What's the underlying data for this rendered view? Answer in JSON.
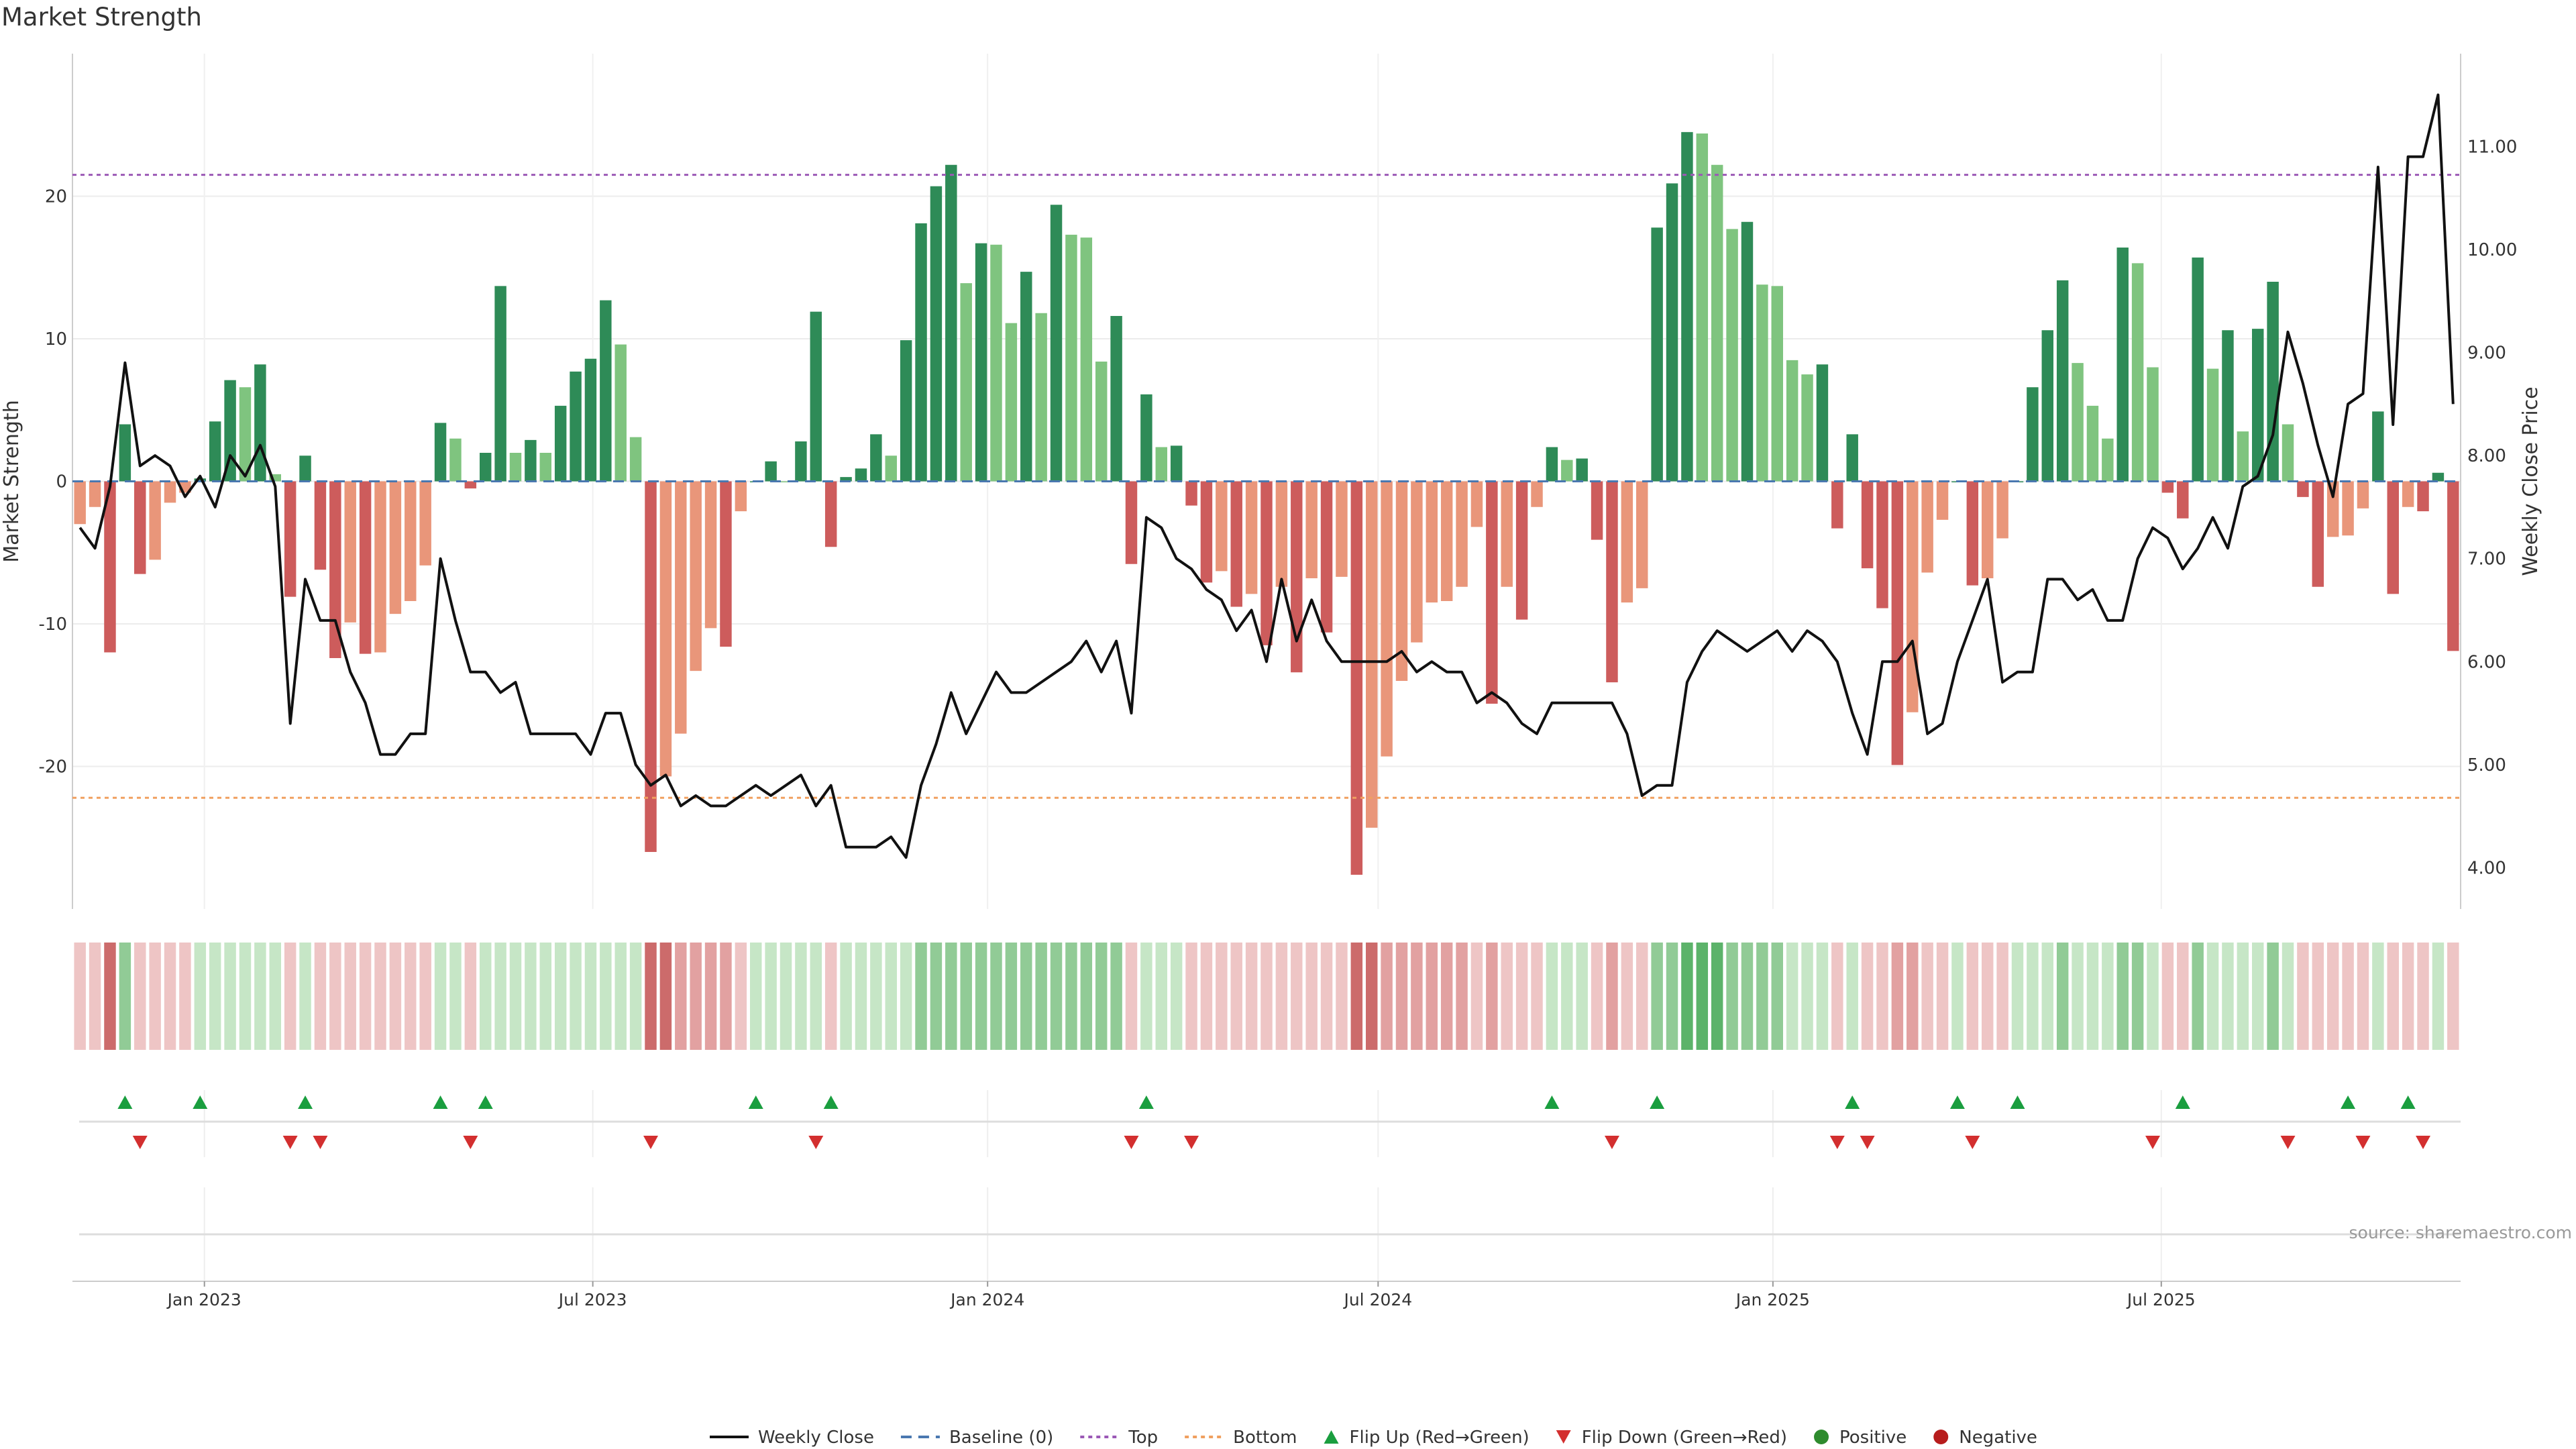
{
  "title": "Market Strength",
  "source": "source: sharemaestro.com",
  "colors": {
    "strong_green": "#2e8b57",
    "light_green": "#7fc47f",
    "strong_red": "#cd5c5c",
    "light_red": "#e9967a",
    "line": "#111111",
    "baseline": "#4a78b0",
    "top_line": "#9b59b6",
    "bottom_line": "#f0a060",
    "flip_up": "#1a9e3f",
    "flip_down": "#d32f2f",
    "positive": "#2e8b2e",
    "negative": "#b71c1c"
  },
  "chart_data": {
    "type": "bar",
    "title": "Market Strength",
    "ylabel": "Market Strength",
    "y2label": "Weekly Close Price",
    "ylim": [
      -30,
      30
    ],
    "y2lim": [
      3.6,
      11.9
    ],
    "yticks": [
      -20,
      -10,
      0,
      10,
      20
    ],
    "y2ticks": [
      "4.00",
      "5.00",
      "6.00",
      "7.00",
      "8.00",
      "9.00",
      "10.00",
      "11.00"
    ],
    "x_start": "2022-11-04",
    "x_step_days": 7,
    "xticks": [
      {
        "date": "2023-01-01",
        "label": "Jan 2023"
      },
      {
        "date": "2023-07-01",
        "label": "Jul 2023"
      },
      {
        "date": "2024-01-01",
        "label": "Jan 2024"
      },
      {
        "date": "2024-07-01",
        "label": "Jul 2024"
      },
      {
        "date": "2025-01-01",
        "label": "Jan 2025"
      },
      {
        "date": "2025-07-01",
        "label": "Jul 2025"
      }
    ],
    "top_level": 21.5,
    "bottom_level": -22.2,
    "baseline_level": 0,
    "strength": [
      -3.0,
      -1.8,
      -12.0,
      4.0,
      -6.5,
      -5.5,
      -1.5,
      -0.8,
      0.2,
      4.2,
      7.1,
      6.6,
      8.2,
      0.5,
      -8.1,
      1.8,
      -6.2,
      -12.4,
      -9.9,
      -12.1,
      -12.0,
      -9.3,
      -8.4,
      -5.9,
      4.1,
      3.0,
      -0.5,
      2.0,
      13.7,
      2.0,
      2.9,
      2.0,
      5.3,
      7.7,
      8.6,
      12.7,
      9.6,
      3.1,
      -26.0,
      -20.7,
      -17.7,
      -13.3,
      -10.3,
      -11.6,
      -2.1,
      0.0,
      1.4,
      0.0,
      2.8,
      11.9,
      -4.6,
      0.3,
      0.9,
      3.3,
      1.8,
      9.9,
      18.1,
      20.7,
      22.2,
      13.9,
      16.7,
      16.6,
      11.1,
      14.7,
      11.8,
      19.4,
      17.3,
      17.1,
      8.4,
      11.6,
      -5.8,
      6.1,
      2.4,
      2.5,
      -1.7,
      -7.1,
      -6.3,
      -8.8,
      -7.9,
      -11.5,
      -7.4,
      -13.4,
      -6.8,
      -10.6,
      -6.7,
      -27.6,
      -24.3,
      -19.3,
      -14.0,
      -11.3,
      -8.5,
      -8.4,
      -7.4,
      -3.2,
      -15.6,
      -7.4,
      -9.7,
      -1.8,
      2.4,
      1.5,
      1.6,
      -4.1,
      -14.1,
      -8.5,
      -7.5,
      17.8,
      20.9,
      24.5,
      24.4,
      22.2,
      17.7,
      18.2,
      13.8,
      13.7,
      8.5,
      7.5,
      8.2,
      -3.3,
      3.3,
      -6.1,
      -8.9,
      -19.9,
      -16.2,
      -6.4,
      -2.7,
      0.0,
      -7.3,
      -6.8,
      -4.0,
      0.0,
      6.6,
      10.6,
      14.1,
      8.3,
      5.3,
      3.0,
      16.4,
      15.3,
      8.0,
      -0.8,
      -2.6,
      15.7,
      7.9,
      10.6,
      3.5,
      10.7,
      14.0,
      4.0,
      -1.1,
      -7.4,
      -3.9,
      -3.8,
      -1.9,
      4.9,
      -7.9,
      -1.8,
      -2.1,
      0.6,
      -11.9
    ],
    "close": [
      7.3,
      7.1,
      7.7,
      8.9,
      7.9,
      8.0,
      7.9,
      7.6,
      7.8,
      7.5,
      8.0,
      7.8,
      8.1,
      7.7,
      5.4,
      6.8,
      6.4,
      6.4,
      5.9,
      5.6,
      5.1,
      5.1,
      5.3,
      5.3,
      7.0,
      6.4,
      5.9,
      5.9,
      5.7,
      5.8,
      5.3,
      5.3,
      5.3,
      5.3,
      5.1,
      5.5,
      5.5,
      5.0,
      4.8,
      4.9,
      4.6,
      4.7,
      4.6,
      4.6,
      4.7,
      4.8,
      4.7,
      4.8,
      4.9,
      4.6,
      4.8,
      4.2,
      4.2,
      4.2,
      4.3,
      4.1,
      4.8,
      5.2,
      5.7,
      5.3,
      5.6,
      5.9,
      5.7,
      5.7,
      5.8,
      5.9,
      6.0,
      6.2,
      5.9,
      6.2,
      5.5,
      7.4,
      7.3,
      7.0,
      6.9,
      6.7,
      6.6,
      6.3,
      6.5,
      6.0,
      6.8,
      6.2,
      6.6,
      6.2,
      6.0,
      6.0,
      6.0,
      6.0,
      6.1,
      5.9,
      6.0,
      5.9,
      5.9,
      5.6,
      5.7,
      5.6,
      5.4,
      5.3,
      5.6,
      5.6,
      5.6,
      5.6,
      5.6,
      5.3,
      4.7,
      4.8,
      4.8,
      5.8,
      6.1,
      6.3,
      6.2,
      6.1,
      6.2,
      6.3,
      6.1,
      6.3,
      6.2,
      6.0,
      5.5,
      5.1,
      6.0,
      6.0,
      6.2,
      5.3,
      5.4,
      6.0,
      6.4,
      6.8,
      5.8,
      5.9,
      5.9,
      6.8,
      6.8,
      6.6,
      6.7,
      6.4,
      6.4,
      7.0,
      7.3,
      7.2,
      6.9,
      7.1,
      7.4,
      7.1,
      7.7,
      7.8,
      8.2,
      9.2,
      8.7,
      8.1,
      7.6,
      8.5,
      8.6,
      10.8,
      8.3,
      10.9,
      10.9,
      11.5,
      8.5
    ],
    "heat_shade": [
      1,
      1,
      3,
      2,
      1,
      1,
      1,
      1,
      1,
      1,
      1,
      1,
      1,
      1,
      1,
      1,
      1,
      1,
      1,
      1,
      1,
      1,
      1,
      1,
      1,
      1,
      1,
      1,
      1,
      1,
      1,
      1,
      1,
      1,
      1,
      1,
      1,
      1,
      3,
      3,
      2,
      2,
      2,
      2,
      1,
      1,
      1,
      1,
      1,
      1,
      1,
      1,
      1,
      1,
      1,
      1,
      2,
      2,
      2,
      2,
      2,
      2,
      2,
      2,
      2,
      2,
      2,
      2,
      2,
      2,
      1,
      1,
      1,
      1,
      1,
      1,
      1,
      1,
      1,
      1,
      1,
      1,
      1,
      1,
      1,
      3,
      3,
      2,
      2,
      2,
      2,
      2,
      2,
      1,
      2,
      1,
      1,
      1,
      1,
      1,
      1,
      1,
      2,
      1,
      1,
      2,
      2,
      3,
      3,
      3,
      2,
      2,
      2,
      2,
      1,
      1,
      1,
      1,
      1,
      1,
      1,
      2,
      2,
      1,
      1,
      1,
      1,
      1,
      1,
      1,
      1,
      1,
      2,
      1,
      1,
      1,
      2,
      2,
      1,
      1,
      1,
      2,
      1,
      1,
      1,
      1,
      2,
      1,
      1,
      1,
      1,
      1,
      1,
      1,
      1,
      1,
      1,
      1,
      1
    ],
    "flip_up": [
      3,
      8,
      15,
      24,
      27,
      45,
      50,
      71,
      98,
      105,
      118,
      125,
      129,
      140,
      151,
      155
    ],
    "flip_down": [
      4,
      14,
      16,
      26,
      38,
      49,
      70,
      74,
      102,
      117,
      119,
      126,
      138,
      147,
      152,
      156
    ]
  },
  "legend": [
    {
      "label": "Weekly Close",
      "kind": "line"
    },
    {
      "label": "Baseline (0)",
      "kind": "dash"
    },
    {
      "label": "Top",
      "kind": "dot"
    },
    {
      "label": "Bottom",
      "kind": "dot2"
    },
    {
      "label": "Flip Up (Red→Green)",
      "kind": "tri_up"
    },
    {
      "label": "Flip Down (Green→Red)",
      "kind": "tri_down"
    },
    {
      "label": "Positive",
      "kind": "circle_pos"
    },
    {
      "label": "Negative",
      "kind": "circle_neg"
    }
  ]
}
